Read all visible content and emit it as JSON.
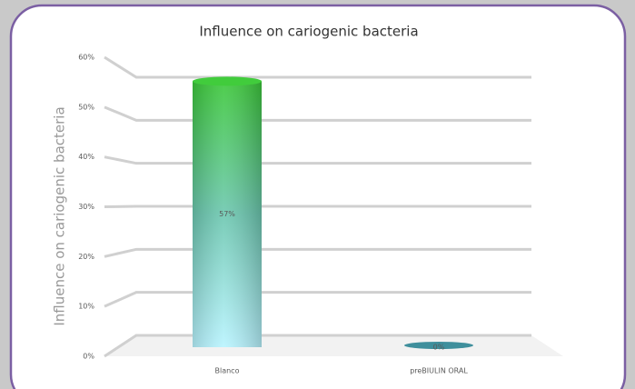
{
  "chart_data": {
    "type": "bar",
    "title": "Influence on cariogenic bacteria",
    "y_label": "Influence on cariogenic bacteria",
    "categories": [
      "Blanco",
      "preBIULIN ORAL"
    ],
    "values": [
      57,
      0
    ],
    "value_labels": [
      "57%",
      "0%"
    ],
    "color": "#3fc43a",
    "ylim": [
      0,
      60
    ],
    "yticks": [
      {
        "value": 0,
        "label": "0%"
      },
      {
        "value": 10,
        "label": "10%"
      },
      {
        "value": 20,
        "label": "20%"
      },
      {
        "value": 30,
        "label": "30%"
      },
      {
        "value": 40,
        "label": "40%"
      },
      {
        "value": 50,
        "label": "50%"
      },
      {
        "value": 60,
        "label": "60%"
      }
    ],
    "grid": true
  }
}
